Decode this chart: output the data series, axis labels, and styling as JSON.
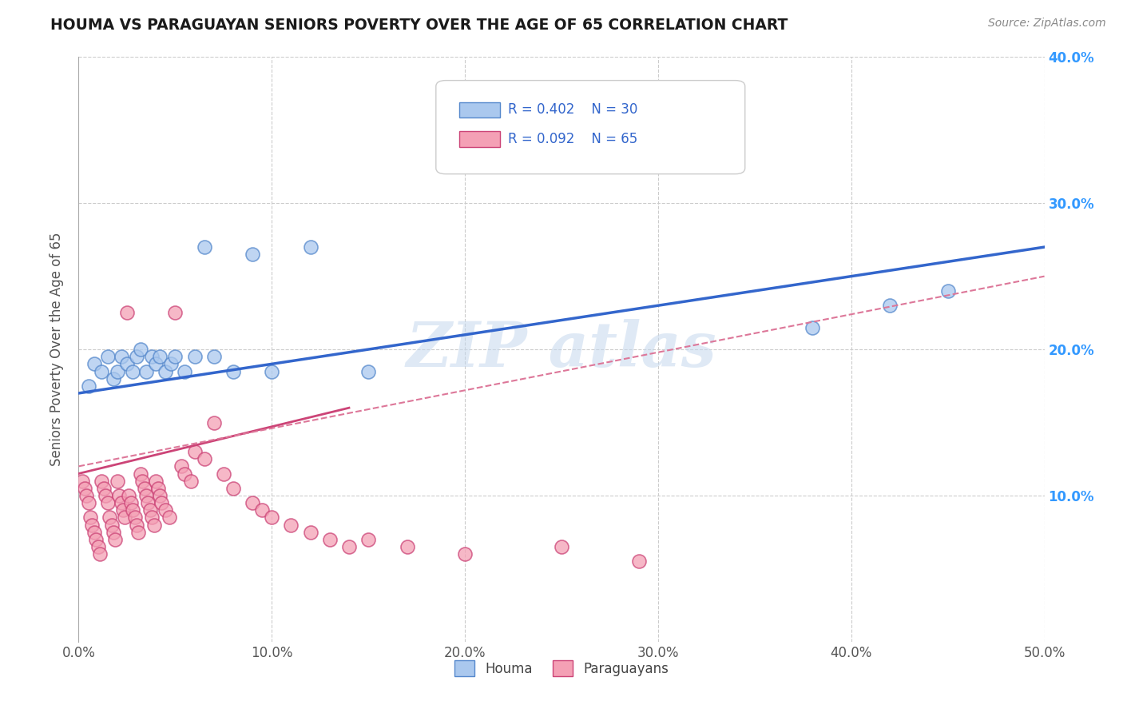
{
  "title": "HOUMA VS PARAGUAYAN SENIORS POVERTY OVER THE AGE OF 65 CORRELATION CHART",
  "source_text": "Source: ZipAtlas.com",
  "ylabel": "Seniors Poverty Over the Age of 65",
  "xlim": [
    0,
    0.5
  ],
  "ylim": [
    0,
    0.4
  ],
  "xticks": [
    0.0,
    0.1,
    0.2,
    0.3,
    0.4,
    0.5
  ],
  "xtick_labels": [
    "0.0%",
    "10.0%",
    "20.0%",
    "30.0%",
    "40.0%",
    "50.0%"
  ],
  "yticks": [
    0.0,
    0.1,
    0.2,
    0.3,
    0.4
  ],
  "right_ytick_labels": [
    "",
    "10.0%",
    "20.0%",
    "30.0%",
    "40.0%"
  ],
  "background_color": "#ffffff",
  "grid_color": "#cccccc",
  "houma_fill": "#aac8ee",
  "houma_edge": "#5588cc",
  "paraguayan_fill": "#f4a0b5",
  "paraguayan_edge": "#cc4477",
  "houma_line_color": "#3366cc",
  "paraguayan_solid_color": "#cc4477",
  "paraguayan_dash_color": "#dd7799",
  "legend_label_color": "#3366cc",
  "watermark_color": "#c5d8ee",
  "houma_x": [
    0.005,
    0.008,
    0.012,
    0.015,
    0.018,
    0.02,
    0.022,
    0.025,
    0.028,
    0.03,
    0.032,
    0.035,
    0.038,
    0.04,
    0.042,
    0.045,
    0.048,
    0.05,
    0.055,
    0.06,
    0.065,
    0.07,
    0.08,
    0.09,
    0.1,
    0.12,
    0.15,
    0.38,
    0.42,
    0.45
  ],
  "houma_y": [
    0.175,
    0.19,
    0.185,
    0.195,
    0.18,
    0.185,
    0.195,
    0.19,
    0.185,
    0.195,
    0.2,
    0.185,
    0.195,
    0.19,
    0.195,
    0.185,
    0.19,
    0.195,
    0.185,
    0.195,
    0.27,
    0.195,
    0.185,
    0.265,
    0.185,
    0.27,
    0.185,
    0.215,
    0.23,
    0.24
  ],
  "paraguayan_x": [
    0.002,
    0.003,
    0.004,
    0.005,
    0.006,
    0.007,
    0.008,
    0.009,
    0.01,
    0.011,
    0.012,
    0.013,
    0.014,
    0.015,
    0.016,
    0.017,
    0.018,
    0.019,
    0.02,
    0.021,
    0.022,
    0.023,
    0.024,
    0.025,
    0.026,
    0.027,
    0.028,
    0.029,
    0.03,
    0.031,
    0.032,
    0.033,
    0.034,
    0.035,
    0.036,
    0.037,
    0.038,
    0.039,
    0.04,
    0.041,
    0.042,
    0.043,
    0.045,
    0.047,
    0.05,
    0.053,
    0.055,
    0.058,
    0.06,
    0.065,
    0.07,
    0.075,
    0.08,
    0.09,
    0.095,
    0.1,
    0.11,
    0.12,
    0.13,
    0.14,
    0.15,
    0.17,
    0.2,
    0.25,
    0.29
  ],
  "paraguayan_y": [
    0.11,
    0.105,
    0.1,
    0.095,
    0.085,
    0.08,
    0.075,
    0.07,
    0.065,
    0.06,
    0.11,
    0.105,
    0.1,
    0.095,
    0.085,
    0.08,
    0.075,
    0.07,
    0.11,
    0.1,
    0.095,
    0.09,
    0.085,
    0.225,
    0.1,
    0.095,
    0.09,
    0.085,
    0.08,
    0.075,
    0.115,
    0.11,
    0.105,
    0.1,
    0.095,
    0.09,
    0.085,
    0.08,
    0.11,
    0.105,
    0.1,
    0.095,
    0.09,
    0.085,
    0.225,
    0.12,
    0.115,
    0.11,
    0.13,
    0.125,
    0.15,
    0.115,
    0.105,
    0.095,
    0.09,
    0.085,
    0.08,
    0.075,
    0.07,
    0.065,
    0.07,
    0.065,
    0.06,
    0.065,
    0.055
  ],
  "houma_trend": [
    0.0,
    0.5,
    0.17,
    0.27
  ],
  "paraguayan_solid_trend": [
    0.0,
    0.14,
    0.115,
    0.16
  ],
  "paraguayan_dash_trend": [
    0.0,
    0.5,
    0.12,
    0.25
  ]
}
